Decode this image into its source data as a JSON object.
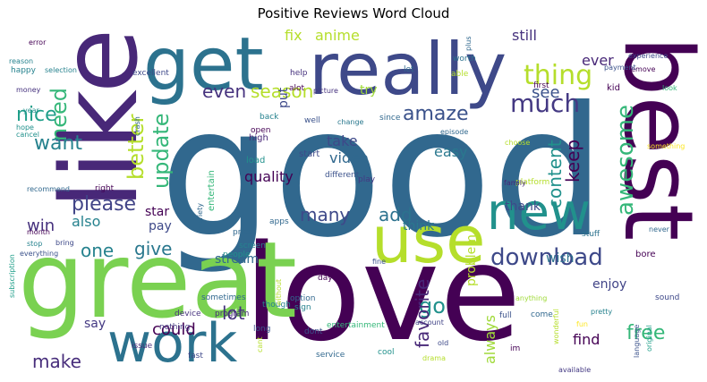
{
  "title": "Positive Reviews Word Cloud",
  "palette": [
    "#440154",
    "#3b528b",
    "#21918c",
    "#5ec962",
    "#fde725"
  ],
  "words": [
    {
      "text": "good",
      "color": "#31688e"
    },
    {
      "text": "love",
      "color": "#440154"
    },
    {
      "text": "great",
      "color": "#7ad151"
    },
    {
      "text": "like",
      "color": "#482878"
    },
    {
      "text": "get",
      "color": "#2c728e"
    },
    {
      "text": "really",
      "color": "#3e4989"
    },
    {
      "text": "best",
      "color": "#440154"
    },
    {
      "text": "use",
      "color": "#b5de2b"
    },
    {
      "text": "new",
      "color": "#21918c"
    },
    {
      "text": "work",
      "color": "#2c728e"
    },
    {
      "text": "download",
      "color": "#3e4989"
    },
    {
      "text": "awesome",
      "color": "#35b779"
    },
    {
      "text": "amaze",
      "color": "#3b528b"
    },
    {
      "text": "thing",
      "color": "#b5de2b"
    },
    {
      "text": "much",
      "color": "#443983"
    },
    {
      "text": "need",
      "color": "#35b779"
    },
    {
      "text": "even",
      "color": "#46327e"
    },
    {
      "text": "season",
      "color": "#b5de2b"
    },
    {
      "text": "nice",
      "color": "#1f9e89"
    },
    {
      "text": "update",
      "color": "#35b779"
    },
    {
      "text": "better",
      "color": "#b5de2b"
    },
    {
      "text": "want",
      "color": "#26828e"
    },
    {
      "text": "please",
      "color": "#414487"
    },
    {
      "text": "content",
      "color": "#21918c"
    },
    {
      "text": "keep",
      "color": "#440154"
    },
    {
      "text": "free",
      "color": "#35b779"
    },
    {
      "text": "lot",
      "color": "#46327e"
    },
    {
      "text": "go",
      "color": "#21918c"
    },
    {
      "text": "make",
      "color": "#472d7b"
    },
    {
      "text": "could",
      "color": "#440154"
    },
    {
      "text": "give",
      "color": "#2a788e"
    },
    {
      "text": "one",
      "color": "#26828e"
    },
    {
      "text": "many",
      "color": "#3e4989"
    },
    {
      "text": "add",
      "color": "#2c728e"
    },
    {
      "text": "favorite",
      "color": "#482878"
    },
    {
      "text": "see",
      "color": "#3b528b"
    },
    {
      "text": "fix",
      "color": "#b5de2b"
    },
    {
      "text": "anime",
      "color": "#b5de2b"
    },
    {
      "text": "ever",
      "color": "#482878"
    },
    {
      "text": "still",
      "color": "#46327e"
    },
    {
      "text": "try",
      "color": "#a0da39"
    },
    {
      "text": "video",
      "color": "#31688e"
    },
    {
      "text": "take",
      "color": "#3e4989"
    },
    {
      "text": "easy",
      "color": "#2a788e"
    },
    {
      "text": "quality",
      "color": "#440154"
    },
    {
      "text": "win",
      "color": "#46327e"
    },
    {
      "text": "also",
      "color": "#26828e"
    },
    {
      "text": "star",
      "color": "#440154"
    },
    {
      "text": "pay",
      "color": "#3e4989"
    },
    {
      "text": "stream",
      "color": "#31688e"
    },
    {
      "text": "say",
      "color": "#443983"
    },
    {
      "text": "problem",
      "color": "#b5de2b"
    },
    {
      "text": "always",
      "color": "#a0da39"
    },
    {
      "text": "find",
      "color": "#440154"
    },
    {
      "text": "enjoy",
      "color": "#414487"
    },
    {
      "text": "wish",
      "color": "#2c728e"
    },
    {
      "text": "thank",
      "color": "#3e4989"
    },
    {
      "text": "think",
      "color": "#2a788e"
    },
    {
      "text": "put",
      "color": "#3e4989"
    },
    {
      "text": "entertain",
      "color": "#35b779"
    },
    {
      "text": "excellent",
      "color": "#3e4989"
    },
    {
      "text": "happy",
      "color": "#26828e"
    },
    {
      "text": "error",
      "color": "#440154"
    },
    {
      "text": "money",
      "color": "#46327e"
    },
    {
      "text": "hope",
      "color": "#21918c"
    },
    {
      "text": "year",
      "color": "#21918c"
    },
    {
      "text": "picture",
      "color": "#46327e"
    },
    {
      "text": "high",
      "color": "#482878"
    },
    {
      "text": "load",
      "color": "#21918c"
    },
    {
      "text": "start",
      "color": "#3e4989"
    },
    {
      "text": "apps",
      "color": "#31688e"
    },
    {
      "text": "price",
      "color": "#31688e"
    },
    {
      "text": "screen",
      "color": "#26828e"
    },
    {
      "text": "people",
      "color": "#21918c"
    },
    {
      "text": "different",
      "color": "#3b528b"
    },
    {
      "text": "play",
      "color": "#443983"
    },
    {
      "text": "platform",
      "color": "#b5de2b"
    },
    {
      "text": "family",
      "color": "#482878"
    },
    {
      "text": "open",
      "color": "#440154"
    },
    {
      "text": "back",
      "color": "#26828e"
    },
    {
      "text": "well",
      "color": "#3b528b"
    },
    {
      "text": "change",
      "color": "#2a788e"
    },
    {
      "text": "since",
      "color": "#31688e"
    },
    {
      "text": "first",
      "color": "#440154"
    },
    {
      "text": "kid",
      "color": "#440154"
    },
    {
      "text": "look",
      "color": "#35b779"
    },
    {
      "text": "experience",
      "color": "#3e4989"
    },
    {
      "text": "remove",
      "color": "#440154"
    },
    {
      "text": "episode",
      "color": "#31688e"
    },
    {
      "text": "choose",
      "color": "#b5de2b"
    },
    {
      "text": "something",
      "color": "#fde725"
    },
    {
      "text": "stuff",
      "color": "#2c728e"
    },
    {
      "text": "never",
      "color": "#31688e"
    },
    {
      "text": "bore",
      "color": "#440154"
    },
    {
      "text": "sound",
      "color": "#3e4989"
    },
    {
      "text": "pretty",
      "color": "#26828e"
    },
    {
      "text": "wonderful",
      "color": "#b5de2b"
    },
    {
      "text": "language",
      "color": "#3b528b"
    },
    {
      "text": "original",
      "color": "#1f9e89"
    },
    {
      "text": "available",
      "color": "#443983"
    },
    {
      "text": "im",
      "color": "#440154"
    },
    {
      "text": "old",
      "color": "#3e4989"
    },
    {
      "text": "account",
      "color": "#414487"
    },
    {
      "text": "full",
      "color": "#3b528b"
    },
    {
      "text": "come",
      "color": "#31688e"
    },
    {
      "text": "anything",
      "color": "#a0da39"
    },
    {
      "text": "fun",
      "color": "#fde725"
    },
    {
      "text": "entertainment",
      "color": "#35b779"
    },
    {
      "text": "day",
      "color": "#440154"
    },
    {
      "text": "service",
      "color": "#31688e"
    },
    {
      "text": "cool",
      "color": "#21918c"
    },
    {
      "text": "fast",
      "color": "#3e4989"
    },
    {
      "text": "nothing",
      "color": "#443983"
    },
    {
      "text": "program",
      "color": "#472d7b"
    },
    {
      "text": "long",
      "color": "#3b528b"
    },
    {
      "text": "option",
      "color": "#31688e"
    },
    {
      "text": "sign",
      "color": "#26828e"
    },
    {
      "text": "though",
      "color": "#26828e"
    },
    {
      "text": "sometimes",
      "color": "#31688e"
    },
    {
      "text": "issue",
      "color": "#472d7b"
    },
    {
      "text": "device",
      "color": "#46327e"
    },
    {
      "text": "everything",
      "color": "#3b528b"
    },
    {
      "text": "stop",
      "color": "#26828e"
    },
    {
      "text": "month",
      "color": "#440154"
    },
    {
      "text": "subscription",
      "color": "#1f9e89"
    },
    {
      "text": "bring",
      "color": "#3e4989"
    },
    {
      "text": "recommend",
      "color": "#31688e"
    },
    {
      "text": "right",
      "color": "#440154"
    },
    {
      "text": "cancel",
      "color": "#21918c"
    },
    {
      "text": "selection",
      "color": "#26828e"
    },
    {
      "text": "variety",
      "color": "#31688e"
    },
    {
      "text": "drama",
      "color": "#b5de2b"
    },
    {
      "text": "without",
      "color": "#b5de2b"
    },
    {
      "text": "fine",
      "color": "#3b528b"
    },
    {
      "text": "dont",
      "color": "#3b528b"
    },
    {
      "text": "cant",
      "color": "#b5de2b"
    },
    {
      "text": "help",
      "color": "#46327e"
    },
    {
      "text": "alot",
      "color": "#440154"
    },
    {
      "text": "let",
      "color": "#31688e"
    },
    {
      "text": "able",
      "color": "#b5de2b"
    },
    {
      "text": "worth",
      "color": "#2c728e"
    },
    {
      "text": "payment",
      "color": "#3b528b"
    },
    {
      "text": "reason",
      "color": "#26828e"
    },
    {
      "text": "crash",
      "color": "#31688e"
    },
    {
      "text": "plus",
      "color": "#31688e"
    }
  ]
}
